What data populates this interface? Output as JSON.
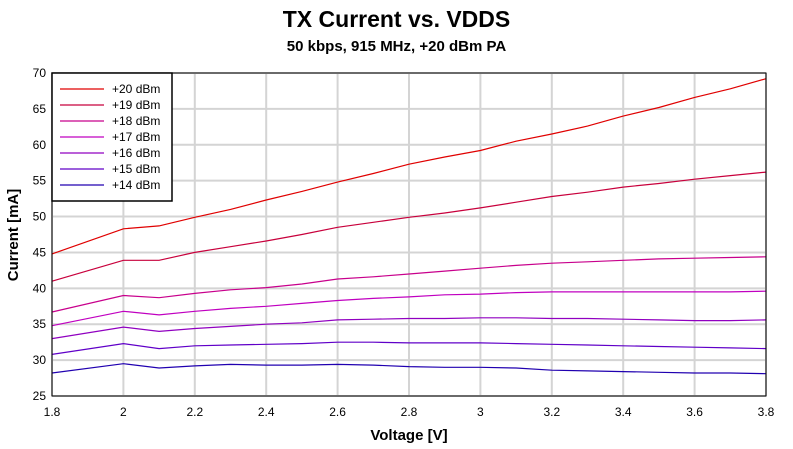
{
  "chart_data": {
    "type": "line",
    "title": "TX Current vs. VDDS",
    "subtitle": "50 kbps, 915 MHz, +20 dBm PA",
    "xlabel": "Voltage [V]",
    "ylabel": "Current [mA]",
    "xlim": [
      1.8,
      3.8
    ],
    "ylim": [
      25,
      70
    ],
    "grid": true,
    "legend_position": "top-left",
    "x_ticks": [
      1.8,
      2,
      2.2,
      2.4,
      2.6,
      2.8,
      3,
      3.2,
      3.4,
      3.6,
      3.8
    ],
    "x_tick_labels": [
      "1.8",
      "2",
      "2.2",
      "2.4",
      "2.6",
      "2.8",
      "3",
      "3.2",
      "3.4",
      "3.6",
      "3.8"
    ],
    "y_ticks": [
      25,
      30,
      35,
      40,
      45,
      50,
      55,
      60,
      65,
      70
    ],
    "y_tick_labels": [
      "25",
      "30",
      "35",
      "40",
      "45",
      "50",
      "55",
      "60",
      "65",
      "70"
    ],
    "x": [
      1.8,
      2.0,
      2.1,
      2.2,
      2.3,
      2.4,
      2.5,
      2.6,
      2.7,
      2.8,
      2.9,
      3.0,
      3.1,
      3.2,
      3.3,
      3.4,
      3.5,
      3.6,
      3.7,
      3.8
    ],
    "series": [
      {
        "name": "+20 dBm",
        "color": "#e00000",
        "values": [
          44.8,
          48.3,
          48.7,
          49.9,
          51.0,
          52.3,
          53.5,
          54.8,
          56.0,
          57.3,
          58.3,
          59.2,
          60.5,
          61.5,
          62.6,
          64.0,
          65.2,
          66.6,
          67.8,
          69.2
        ]
      },
      {
        "name": "+19 dBm",
        "color": "#c8003c",
        "values": [
          41.0,
          43.9,
          43.9,
          45.0,
          45.8,
          46.6,
          47.5,
          48.5,
          49.2,
          49.9,
          50.5,
          51.2,
          52.0,
          52.8,
          53.4,
          54.1,
          54.6,
          55.2,
          55.7,
          56.2
        ]
      },
      {
        "name": "+18 dBm",
        "color": "#c8008c",
        "values": [
          36.7,
          39.0,
          38.7,
          39.3,
          39.8,
          40.1,
          40.6,
          41.3,
          41.6,
          42.0,
          42.4,
          42.8,
          43.2,
          43.5,
          43.7,
          43.9,
          44.1,
          44.2,
          44.3,
          44.4
        ]
      },
      {
        "name": "+17 dBm",
        "color": "#c000c0",
        "values": [
          34.8,
          36.8,
          36.3,
          36.8,
          37.2,
          37.5,
          37.9,
          38.3,
          38.6,
          38.8,
          39.1,
          39.2,
          39.4,
          39.5,
          39.5,
          39.5,
          39.5,
          39.5,
          39.5,
          39.6
        ]
      },
      {
        "name": "+16 dBm",
        "color": "#9000c0",
        "values": [
          33.0,
          34.6,
          34.0,
          34.4,
          34.7,
          35.0,
          35.2,
          35.6,
          35.7,
          35.8,
          35.8,
          35.9,
          35.9,
          35.8,
          35.8,
          35.7,
          35.6,
          35.5,
          35.5,
          35.6
        ]
      },
      {
        "name": "+15 dBm",
        "color": "#6000c8",
        "values": [
          30.8,
          32.3,
          31.6,
          32.0,
          32.1,
          32.2,
          32.3,
          32.5,
          32.5,
          32.4,
          32.4,
          32.4,
          32.3,
          32.2,
          32.1,
          32.0,
          31.9,
          31.8,
          31.7,
          31.6
        ]
      },
      {
        "name": "+14 dBm",
        "color": "#2000b0",
        "values": [
          28.2,
          29.5,
          28.9,
          29.2,
          29.4,
          29.3,
          29.3,
          29.4,
          29.3,
          29.1,
          29.0,
          29.0,
          28.9,
          28.6,
          28.5,
          28.4,
          28.3,
          28.2,
          28.2,
          28.1
        ]
      }
    ]
  }
}
